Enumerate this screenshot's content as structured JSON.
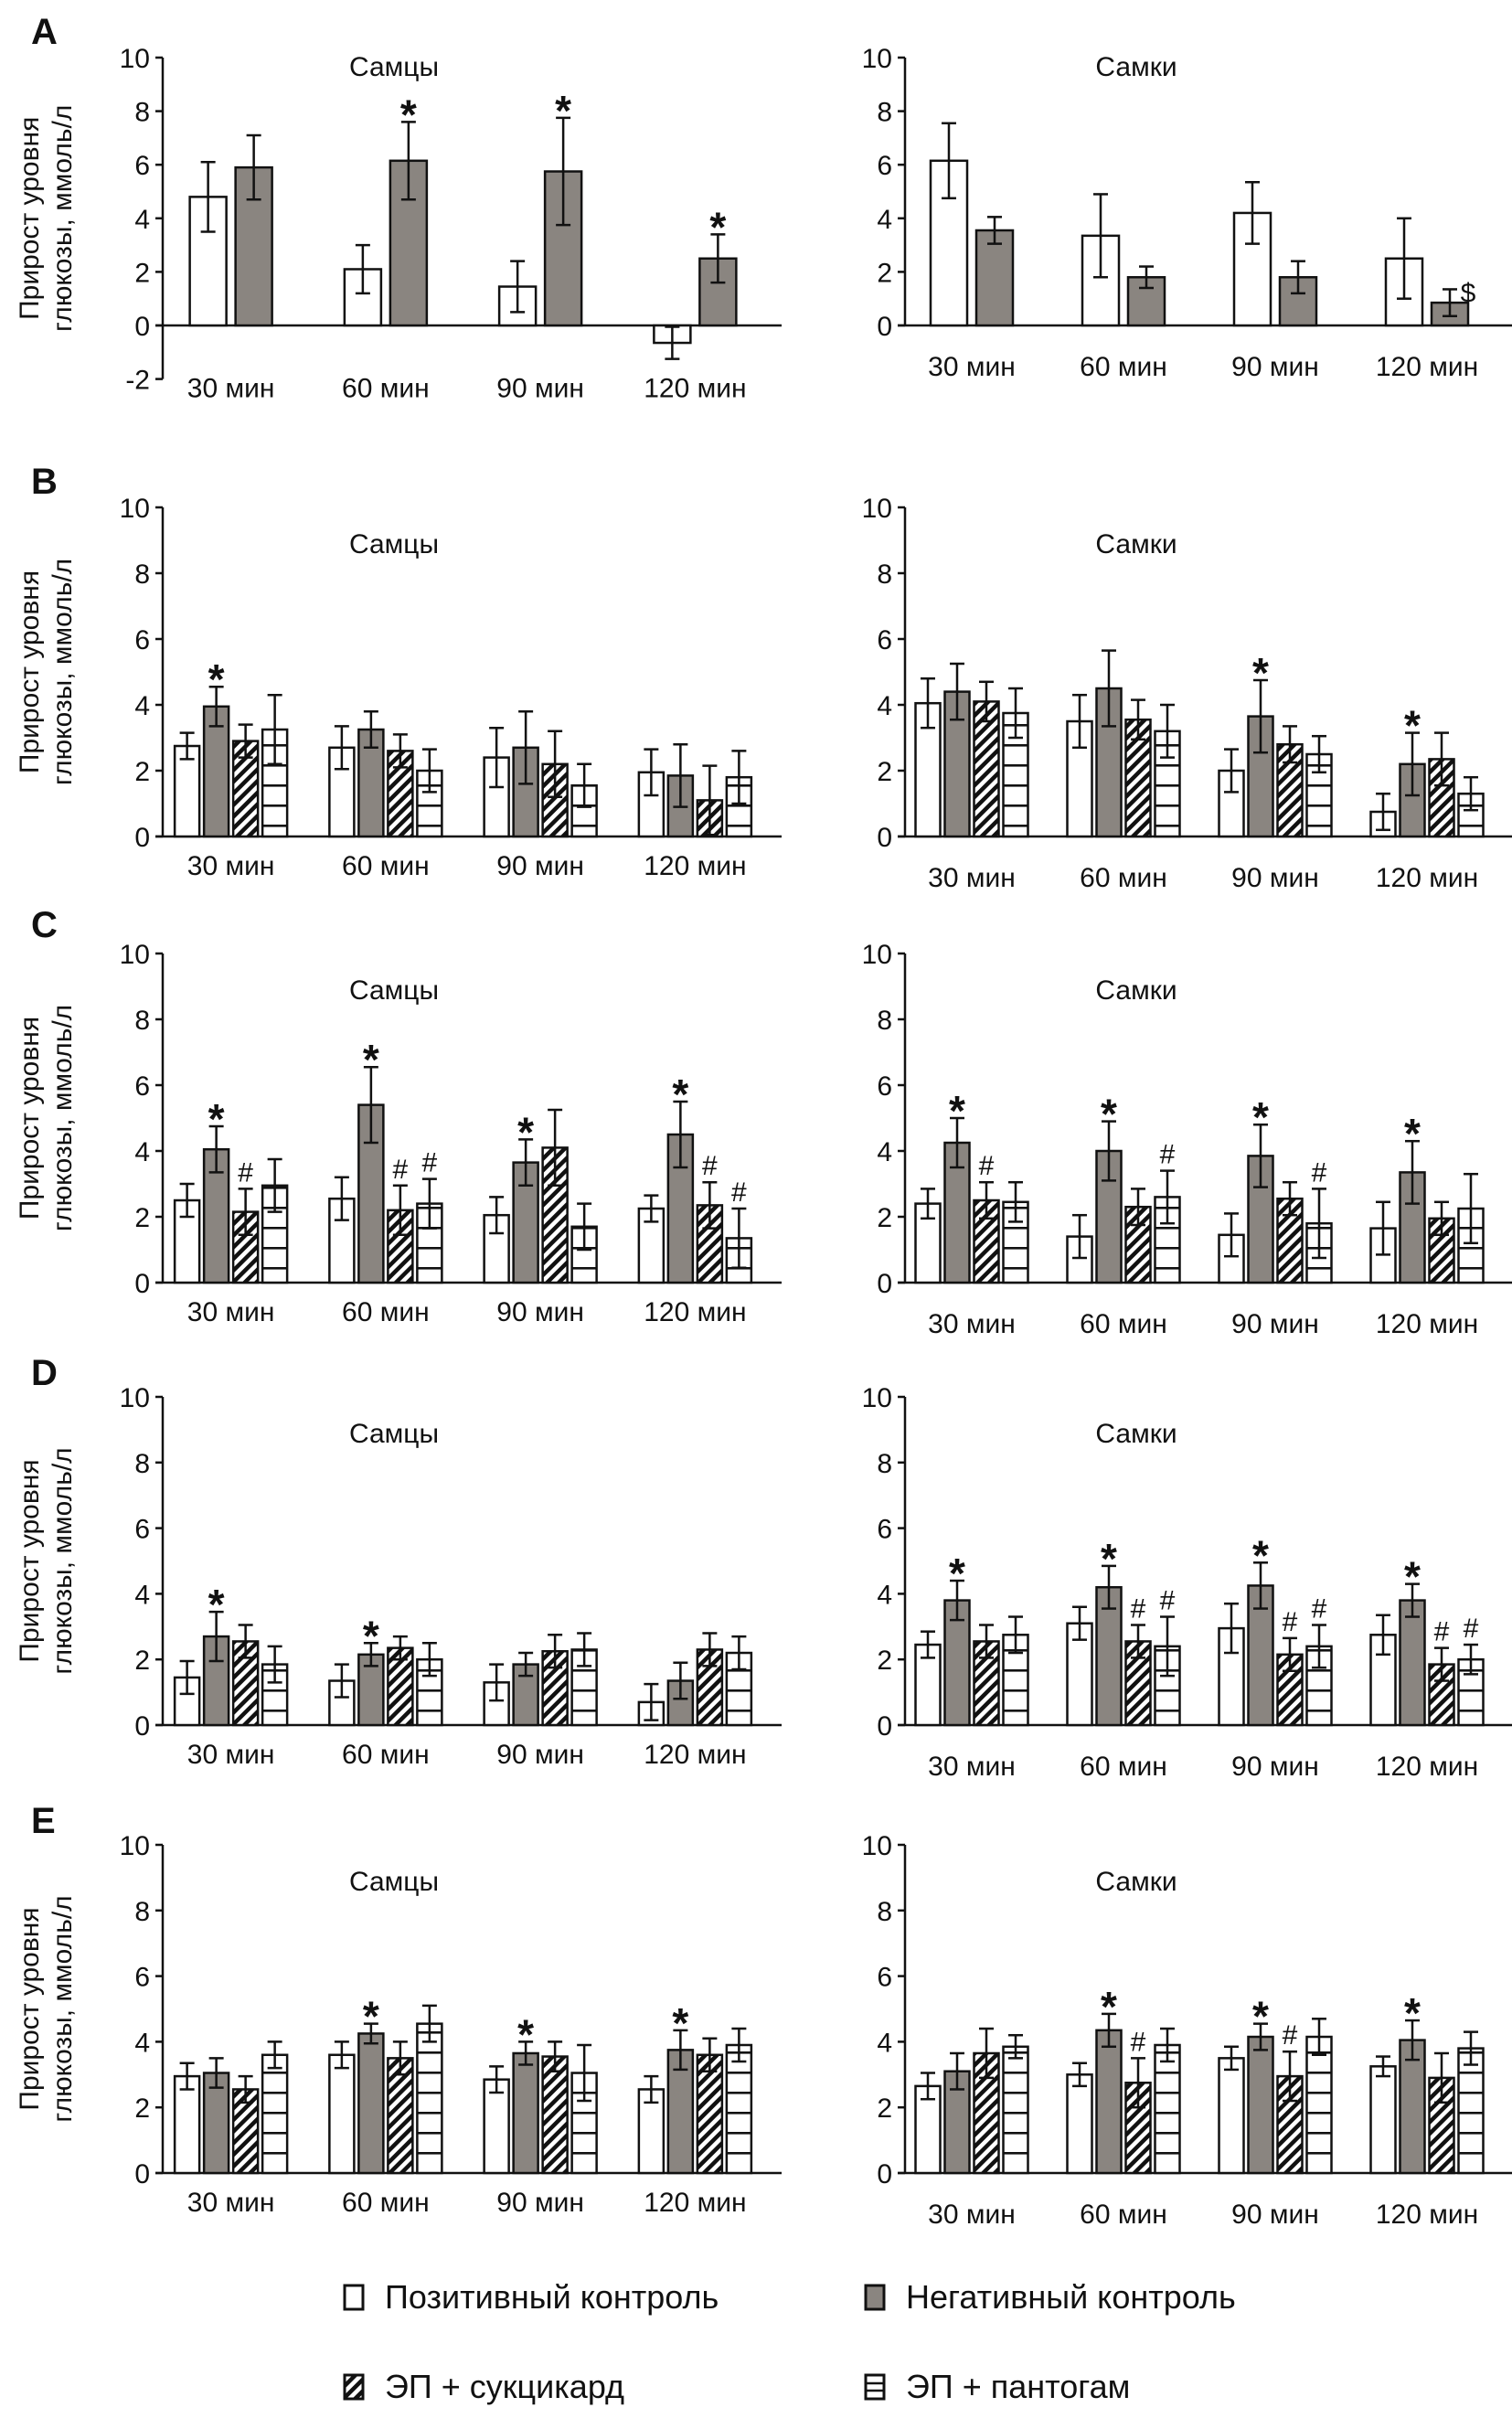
{
  "figure": {
    "colors": {
      "positive_control": "#ffffff",
      "negative_control": "#8a8580",
      "stroke": "#111111"
    }
  },
  "legend": {
    "items": [
      {
        "key": "pos",
        "label": "Позитивный контроль",
        "pattern": "white"
      },
      {
        "key": "neg",
        "label": "Негативный контроль",
        "pattern": "gray"
      },
      {
        "key": "suc",
        "label": "ЭП + сукцикард",
        "pattern": "diagonal-hatch"
      },
      {
        "key": "pan",
        "label": "ЭП + пантогам",
        "pattern": "horizontal-lines"
      }
    ]
  },
  "chart_data": [
    {
      "panel": "A",
      "subtitle": "Самцы",
      "type": "bar",
      "ylabel": "Прирост уровня глюкозы, ммоль/л",
      "ylim": [
        -2,
        10
      ],
      "yticks": [
        -2,
        0,
        2,
        4,
        6,
        8,
        10
      ],
      "categories": [
        "30 мин",
        "60 мин",
        "90 мин",
        "120 мин"
      ],
      "series": [
        {
          "name": "Позитивный контроль",
          "values": [
            4.8,
            2.1,
            1.45,
            -0.65
          ],
          "errors": [
            1.3,
            0.9,
            0.95,
            0.6
          ],
          "marks": [
            "",
            "",
            "",
            ""
          ]
        },
        {
          "name": "Негативный контроль",
          "values": [
            5.9,
            6.15,
            5.75,
            2.5
          ],
          "errors": [
            1.2,
            1.45,
            2.0,
            0.9
          ],
          "marks": [
            "",
            "*",
            "*",
            "*"
          ]
        }
      ]
    },
    {
      "panel": "A",
      "subtitle": "Самки",
      "type": "bar",
      "ylabel": "",
      "ylim": [
        0,
        10
      ],
      "yticks": [
        0,
        2,
        4,
        6,
        8,
        10
      ],
      "categories": [
        "30 мин",
        "60 мин",
        "90 мин",
        "120 мин"
      ],
      "series": [
        {
          "name": "Позитивный контроль",
          "values": [
            6.15,
            3.35,
            4.2,
            2.5
          ],
          "errors": [
            1.4,
            1.55,
            1.15,
            1.5
          ],
          "marks": [
            "",
            "",
            "",
            ""
          ]
        },
        {
          "name": "Негативный контроль",
          "values": [
            3.55,
            1.8,
            1.8,
            0.85
          ],
          "errors": [
            0.5,
            0.4,
            0.6,
            0.5
          ],
          "marks": [
            "",
            "",
            "",
            "$"
          ]
        }
      ]
    },
    {
      "panel": "B",
      "subtitle": "Самцы",
      "type": "bar",
      "ylabel": "Прирост уровня глюкозы, ммоль/л",
      "ylim": [
        0,
        10
      ],
      "yticks": [
        0,
        2,
        4,
        6,
        8,
        10
      ],
      "categories": [
        "30 мин",
        "60 мин",
        "90 мин",
        "120 мин"
      ],
      "series": [
        {
          "name": "Позитивный контроль",
          "values": [
            2.75,
            2.7,
            2.4,
            1.95
          ],
          "errors": [
            0.4,
            0.65,
            0.9,
            0.7
          ],
          "marks": [
            "",
            "",
            "",
            ""
          ]
        },
        {
          "name": "Негативный контроль",
          "values": [
            3.95,
            3.25,
            2.7,
            1.85
          ],
          "errors": [
            0.6,
            0.55,
            1.1,
            0.95
          ],
          "marks": [
            "*",
            "",
            "",
            ""
          ]
        },
        {
          "name": "ЭП + сукцикард",
          "values": [
            2.9,
            2.6,
            2.2,
            1.1
          ],
          "errors": [
            0.5,
            0.5,
            1.0,
            1.05
          ],
          "marks": [
            "",
            "",
            "",
            ""
          ]
        },
        {
          "name": "ЭП + пантогам",
          "values": [
            3.25,
            2.0,
            1.55,
            1.8
          ],
          "errors": [
            1.05,
            0.65,
            0.65,
            0.8
          ],
          "marks": [
            "",
            "",
            "",
            ""
          ]
        }
      ]
    },
    {
      "panel": "B",
      "subtitle": "Самки",
      "type": "bar",
      "ylabel": "",
      "ylim": [
        0,
        10
      ],
      "yticks": [
        0,
        2,
        4,
        6,
        8,
        10
      ],
      "categories": [
        "30 мин",
        "60 мин",
        "90 мин",
        "120 мин"
      ],
      "series": [
        {
          "name": "Позитивный контроль",
          "values": [
            4.05,
            3.5,
            2.0,
            0.75
          ],
          "errors": [
            0.75,
            0.8,
            0.65,
            0.55
          ],
          "marks": [
            "",
            "",
            "",
            ""
          ]
        },
        {
          "name": "Негативный контроль",
          "values": [
            4.4,
            4.5,
            3.65,
            2.2
          ],
          "errors": [
            0.85,
            1.15,
            1.1,
            0.95
          ],
          "marks": [
            "",
            "",
            "*",
            "*"
          ]
        },
        {
          "name": "ЭП + сукцикард",
          "values": [
            4.1,
            3.55,
            2.8,
            2.35
          ],
          "errors": [
            0.6,
            0.6,
            0.55,
            0.8
          ],
          "marks": [
            "",
            "",
            "",
            ""
          ]
        },
        {
          "name": "ЭП + пантогам",
          "values": [
            3.75,
            3.2,
            2.5,
            1.3
          ],
          "errors": [
            0.75,
            0.8,
            0.55,
            0.5
          ],
          "marks": [
            "",
            "",
            "",
            ""
          ]
        }
      ]
    },
    {
      "panel": "C",
      "subtitle": "Самцы",
      "type": "bar",
      "ylabel": "Прирост уровня глюкозы, ммоль/л",
      "ylim": [
        0,
        10
      ],
      "yticks": [
        0,
        2,
        4,
        6,
        8,
        10
      ],
      "categories": [
        "30 мин",
        "60 мин",
        "90 мин",
        "120 мин"
      ],
      "series": [
        {
          "name": "Позитивный контроль",
          "values": [
            2.5,
            2.55,
            2.05,
            2.25
          ],
          "errors": [
            0.5,
            0.65,
            0.55,
            0.4
          ],
          "marks": [
            "",
            "",
            "",
            ""
          ]
        },
        {
          "name": "Негативный контроль",
          "values": [
            4.05,
            5.4,
            3.65,
            4.5
          ],
          "errors": [
            0.7,
            1.15,
            0.7,
            1.0
          ],
          "marks": [
            "*",
            "*",
            "*",
            "*"
          ]
        },
        {
          "name": "ЭП + сукцикард",
          "values": [
            2.15,
            2.2,
            4.1,
            2.35
          ],
          "errors": [
            0.7,
            0.75,
            1.15,
            0.7
          ],
          "marks": [
            "#",
            "#",
            "",
            "#"
          ]
        },
        {
          "name": "ЭП + пантогам",
          "values": [
            2.95,
            2.4,
            1.7,
            1.35
          ],
          "errors": [
            0.8,
            0.75,
            0.7,
            0.9
          ],
          "marks": [
            "",
            "#",
            "",
            "#"
          ]
        }
      ]
    },
    {
      "panel": "C",
      "subtitle": "Самки",
      "type": "bar",
      "ylabel": "",
      "ylim": [
        0,
        10
      ],
      "yticks": [
        0,
        2,
        4,
        6,
        8,
        10
      ],
      "categories": [
        "30 мин",
        "60 мин",
        "90 мин",
        "120 мин"
      ],
      "series": [
        {
          "name": "Позитивный контроль",
          "values": [
            2.4,
            1.4,
            1.45,
            1.65
          ],
          "errors": [
            0.45,
            0.65,
            0.65,
            0.8
          ],
          "marks": [
            "",
            "",
            "",
            ""
          ]
        },
        {
          "name": "Негативный контроль",
          "values": [
            4.25,
            4.0,
            3.85,
            3.35
          ],
          "errors": [
            0.75,
            0.9,
            0.95,
            0.95
          ],
          "marks": [
            "*",
            "*",
            "*",
            "*"
          ]
        },
        {
          "name": "ЭП + сукцикард",
          "values": [
            2.5,
            2.3,
            2.55,
            1.95
          ],
          "errors": [
            0.55,
            0.55,
            0.5,
            0.5
          ],
          "marks": [
            "#",
            "",
            "",
            ""
          ]
        },
        {
          "name": "ЭП + пантогам",
          "values": [
            2.45,
            2.6,
            1.8,
            2.25
          ],
          "errors": [
            0.6,
            0.8,
            1.05,
            1.05
          ],
          "marks": [
            "",
            "#",
            "#",
            ""
          ]
        }
      ]
    },
    {
      "panel": "D",
      "subtitle": "Самцы",
      "type": "bar",
      "ylabel": "Прирост уровня глюкозы, ммоль/л",
      "ylim": [
        0,
        10
      ],
      "yticks": [
        0,
        2,
        4,
        6,
        8,
        10
      ],
      "categories": [
        "30 мин",
        "60 мин",
        "90 мин",
        "120 мин"
      ],
      "series": [
        {
          "name": "Позитивный контроль",
          "values": [
            1.45,
            1.35,
            1.3,
            0.7
          ],
          "errors": [
            0.5,
            0.5,
            0.55,
            0.55
          ],
          "marks": [
            "",
            "",
            "",
            ""
          ]
        },
        {
          "name": "Негативный контроль",
          "values": [
            2.7,
            2.15,
            1.85,
            1.35
          ],
          "errors": [
            0.75,
            0.35,
            0.35,
            0.55
          ],
          "marks": [
            "*",
            "*",
            "",
            ""
          ]
        },
        {
          "name": "ЭП + сукцикард",
          "values": [
            2.55,
            2.35,
            2.25,
            2.3
          ],
          "errors": [
            0.5,
            0.35,
            0.5,
            0.5
          ],
          "marks": [
            "",
            "",
            "",
            ""
          ]
        },
        {
          "name": "ЭП + пантогам",
          "values": [
            1.85,
            2.0,
            2.3,
            2.2
          ],
          "errors": [
            0.55,
            0.5,
            0.5,
            0.5
          ],
          "marks": [
            "",
            "",
            "",
            ""
          ]
        }
      ]
    },
    {
      "panel": "D",
      "subtitle": "Самки",
      "type": "bar",
      "ylabel": "",
      "ylim": [
        0,
        10
      ],
      "yticks": [
        0,
        2,
        4,
        6,
        8,
        10
      ],
      "categories": [
        "30 мин",
        "60 мин",
        "90 мин",
        "120 мин"
      ],
      "series": [
        {
          "name": "Позитивный контроль",
          "values": [
            2.45,
            3.1,
            2.95,
            2.75
          ],
          "errors": [
            0.4,
            0.5,
            0.75,
            0.6
          ],
          "marks": [
            "",
            "",
            "",
            ""
          ]
        },
        {
          "name": "Негативный контроль",
          "values": [
            3.8,
            4.2,
            4.25,
            3.8
          ],
          "errors": [
            0.6,
            0.65,
            0.7,
            0.5
          ],
          "marks": [
            "*",
            "*",
            "*",
            "*"
          ]
        },
        {
          "name": "ЭП + сукцикард",
          "values": [
            2.55,
            2.55,
            2.15,
            1.85
          ],
          "errors": [
            0.5,
            0.5,
            0.5,
            0.5
          ],
          "marks": [
            "",
            "#",
            "#",
            "#"
          ]
        },
        {
          "name": "ЭП + пантогам",
          "values": [
            2.75,
            2.4,
            2.4,
            2.0
          ],
          "errors": [
            0.55,
            0.9,
            0.65,
            0.45
          ],
          "marks": [
            "",
            "#",
            "#",
            "#"
          ]
        }
      ]
    },
    {
      "panel": "E",
      "subtitle": "Самцы",
      "type": "bar",
      "ylabel": "Прирост уровня глюкозы, ммоль/л",
      "ylim": [
        0,
        10
      ],
      "yticks": [
        0,
        2,
        4,
        6,
        8,
        10
      ],
      "categories": [
        "30 мин",
        "60 мин",
        "90 мин",
        "120 мин"
      ],
      "series": [
        {
          "name": "Позитивный контроль",
          "values": [
            2.95,
            3.6,
            2.85,
            2.55
          ],
          "errors": [
            0.4,
            0.4,
            0.4,
            0.4
          ],
          "marks": [
            "",
            "",
            "",
            ""
          ]
        },
        {
          "name": "Негативный контроль",
          "values": [
            3.05,
            4.25,
            3.65,
            3.75
          ],
          "errors": [
            0.45,
            0.3,
            0.35,
            0.6
          ],
          "marks": [
            "",
            "*",
            "*",
            "*"
          ]
        },
        {
          "name": "ЭП + сукцикард",
          "values": [
            2.55,
            3.5,
            3.55,
            3.6
          ],
          "errors": [
            0.4,
            0.5,
            0.45,
            0.5
          ],
          "marks": [
            "",
            "",
            "",
            ""
          ]
        },
        {
          "name": "ЭП + пантогам",
          "values": [
            3.6,
            4.55,
            3.05,
            3.9
          ],
          "errors": [
            0.4,
            0.55,
            0.85,
            0.5
          ],
          "marks": [
            "",
            "",
            "",
            ""
          ]
        }
      ]
    },
    {
      "panel": "E",
      "subtitle": "Самки",
      "type": "bar",
      "ylabel": "",
      "ylim": [
        0,
        10
      ],
      "yticks": [
        0,
        2,
        4,
        6,
        8,
        10
      ],
      "categories": [
        "30 мин",
        "60 мин",
        "90 мин",
        "120 мин"
      ],
      "series": [
        {
          "name": "Позитивный контроль",
          "values": [
            2.65,
            3.0,
            3.5,
            3.25
          ],
          "errors": [
            0.4,
            0.35,
            0.35,
            0.3
          ],
          "marks": [
            "",
            "",
            "",
            ""
          ]
        },
        {
          "name": "Негативный контроль",
          "values": [
            3.1,
            4.35,
            4.15,
            4.05
          ],
          "errors": [
            0.55,
            0.5,
            0.4,
            0.6
          ],
          "marks": [
            "",
            "*",
            "*",
            "*"
          ]
        },
        {
          "name": "ЭП + сукцикард",
          "values": [
            3.65,
            2.75,
            2.95,
            2.9
          ],
          "errors": [
            0.75,
            0.75,
            0.75,
            0.75
          ],
          "marks": [
            "",
            "#",
            "#",
            ""
          ]
        },
        {
          "name": "ЭП + пантогам",
          "values": [
            3.85,
            3.9,
            4.15,
            3.8
          ],
          "errors": [
            0.35,
            0.5,
            0.55,
            0.5
          ],
          "marks": [
            "",
            "",
            "",
            ""
          ]
        }
      ]
    }
  ]
}
